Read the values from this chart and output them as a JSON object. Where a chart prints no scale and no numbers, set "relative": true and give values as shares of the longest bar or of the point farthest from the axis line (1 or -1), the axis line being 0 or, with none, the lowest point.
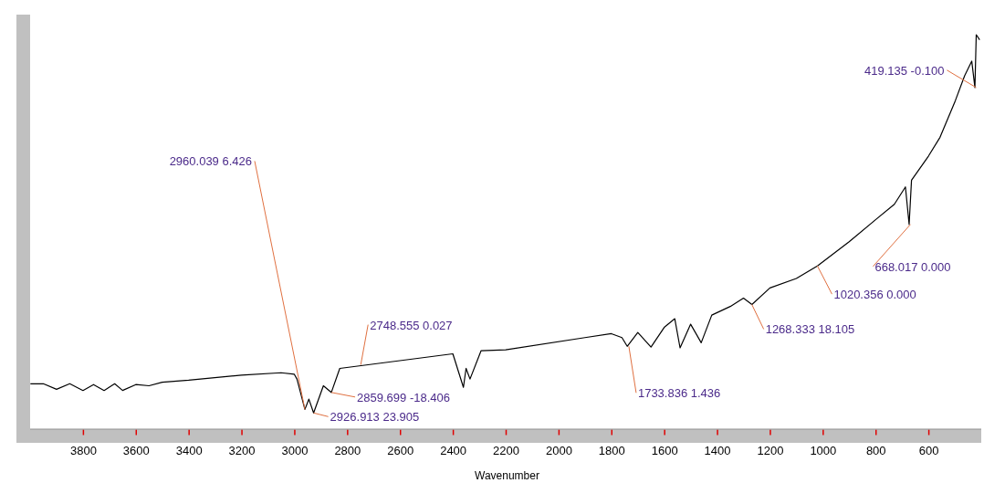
{
  "chart_data": {
    "type": "line",
    "xlabel": "Wavenumber",
    "relative": true,
    "xlim": [
      4000,
      400
    ],
    "xticks": [
      3800,
      3600,
      3400,
      3200,
      3000,
      2800,
      2600,
      2400,
      2200,
      2000,
      1800,
      1600,
      1400,
      1200,
      1000,
      800,
      600
    ],
    "grid": false,
    "marker": "none",
    "line_style": "solid",
    "series": [
      {
        "color": "#000000",
        "x": [
          3999,
          3950,
          3900,
          3850,
          3800,
          3760,
          3720,
          3680,
          3650,
          3600,
          3550,
          3500,
          3400,
          3200,
          3050,
          3000,
          2990,
          2960,
          2945,
          2927,
          2890,
          2860,
          2828,
          2400,
          2360,
          2350,
          2335,
          2293,
          2200,
          1900,
          1800,
          1760,
          1740,
          1700,
          1650,
          1600,
          1560,
          1540,
          1500,
          1460,
          1420,
          1350,
          1300,
          1268,
          1200,
          1100,
          1020,
          900,
          800,
          729,
          687,
          673,
          664,
          600,
          556,
          498,
          463,
          436,
          424,
          419,
          406
        ],
        "values": [
          0.115,
          0.115,
          0.101,
          0.115,
          0.098,
          0.113,
          0.098,
          0.115,
          0.098,
          0.113,
          0.11,
          0.119,
          0.124,
          0.137,
          0.143,
          0.139,
          0.127,
          0.05,
          0.076,
          0.041,
          0.11,
          0.093,
          0.154,
          0.191,
          0.106,
          0.154,
          0.127,
          0.199,
          0.201,
          0.232,
          0.242,
          0.232,
          0.21,
          0.245,
          0.208,
          0.258,
          0.28,
          0.206,
          0.266,
          0.219,
          0.289,
          0.311,
          0.332,
          0.316,
          0.358,
          0.382,
          0.414,
          0.475,
          0.531,
          0.57,
          0.614,
          0.519,
          0.631,
          0.692,
          0.74,
          0.833,
          0.896,
          0.933,
          0.866,
          1,
          0.987
        ]
      }
    ],
    "annotations": [
      {
        "text": "2960.039  6.426",
        "x": 2960.039,
        "y": 0.05
      },
      {
        "text": "2926.913  23.905",
        "x": 2926.913,
        "y": 0.041
      },
      {
        "text": "2859.699  -18.406",
        "x": 2859.699,
        "y": 0.093
      },
      {
        "text": "2748.555  0.027",
        "x": 2748.555,
        "y": 0.163
      },
      {
        "text": "1733.836  1.436",
        "x": 1733.836,
        "y": 0.21
      },
      {
        "text": "1268.333  18.105",
        "x": 1268.333,
        "y": 0.316
      },
      {
        "text": "1020.356  0.000",
        "x": 1020.356,
        "y": 0.414
      },
      {
        "text": "668.017  0.000",
        "x": 668.017,
        "y": 0.519
      },
      {
        "text": "419.135  -0.100",
        "x": 419.135,
        "y": 0.866
      }
    ]
  }
}
